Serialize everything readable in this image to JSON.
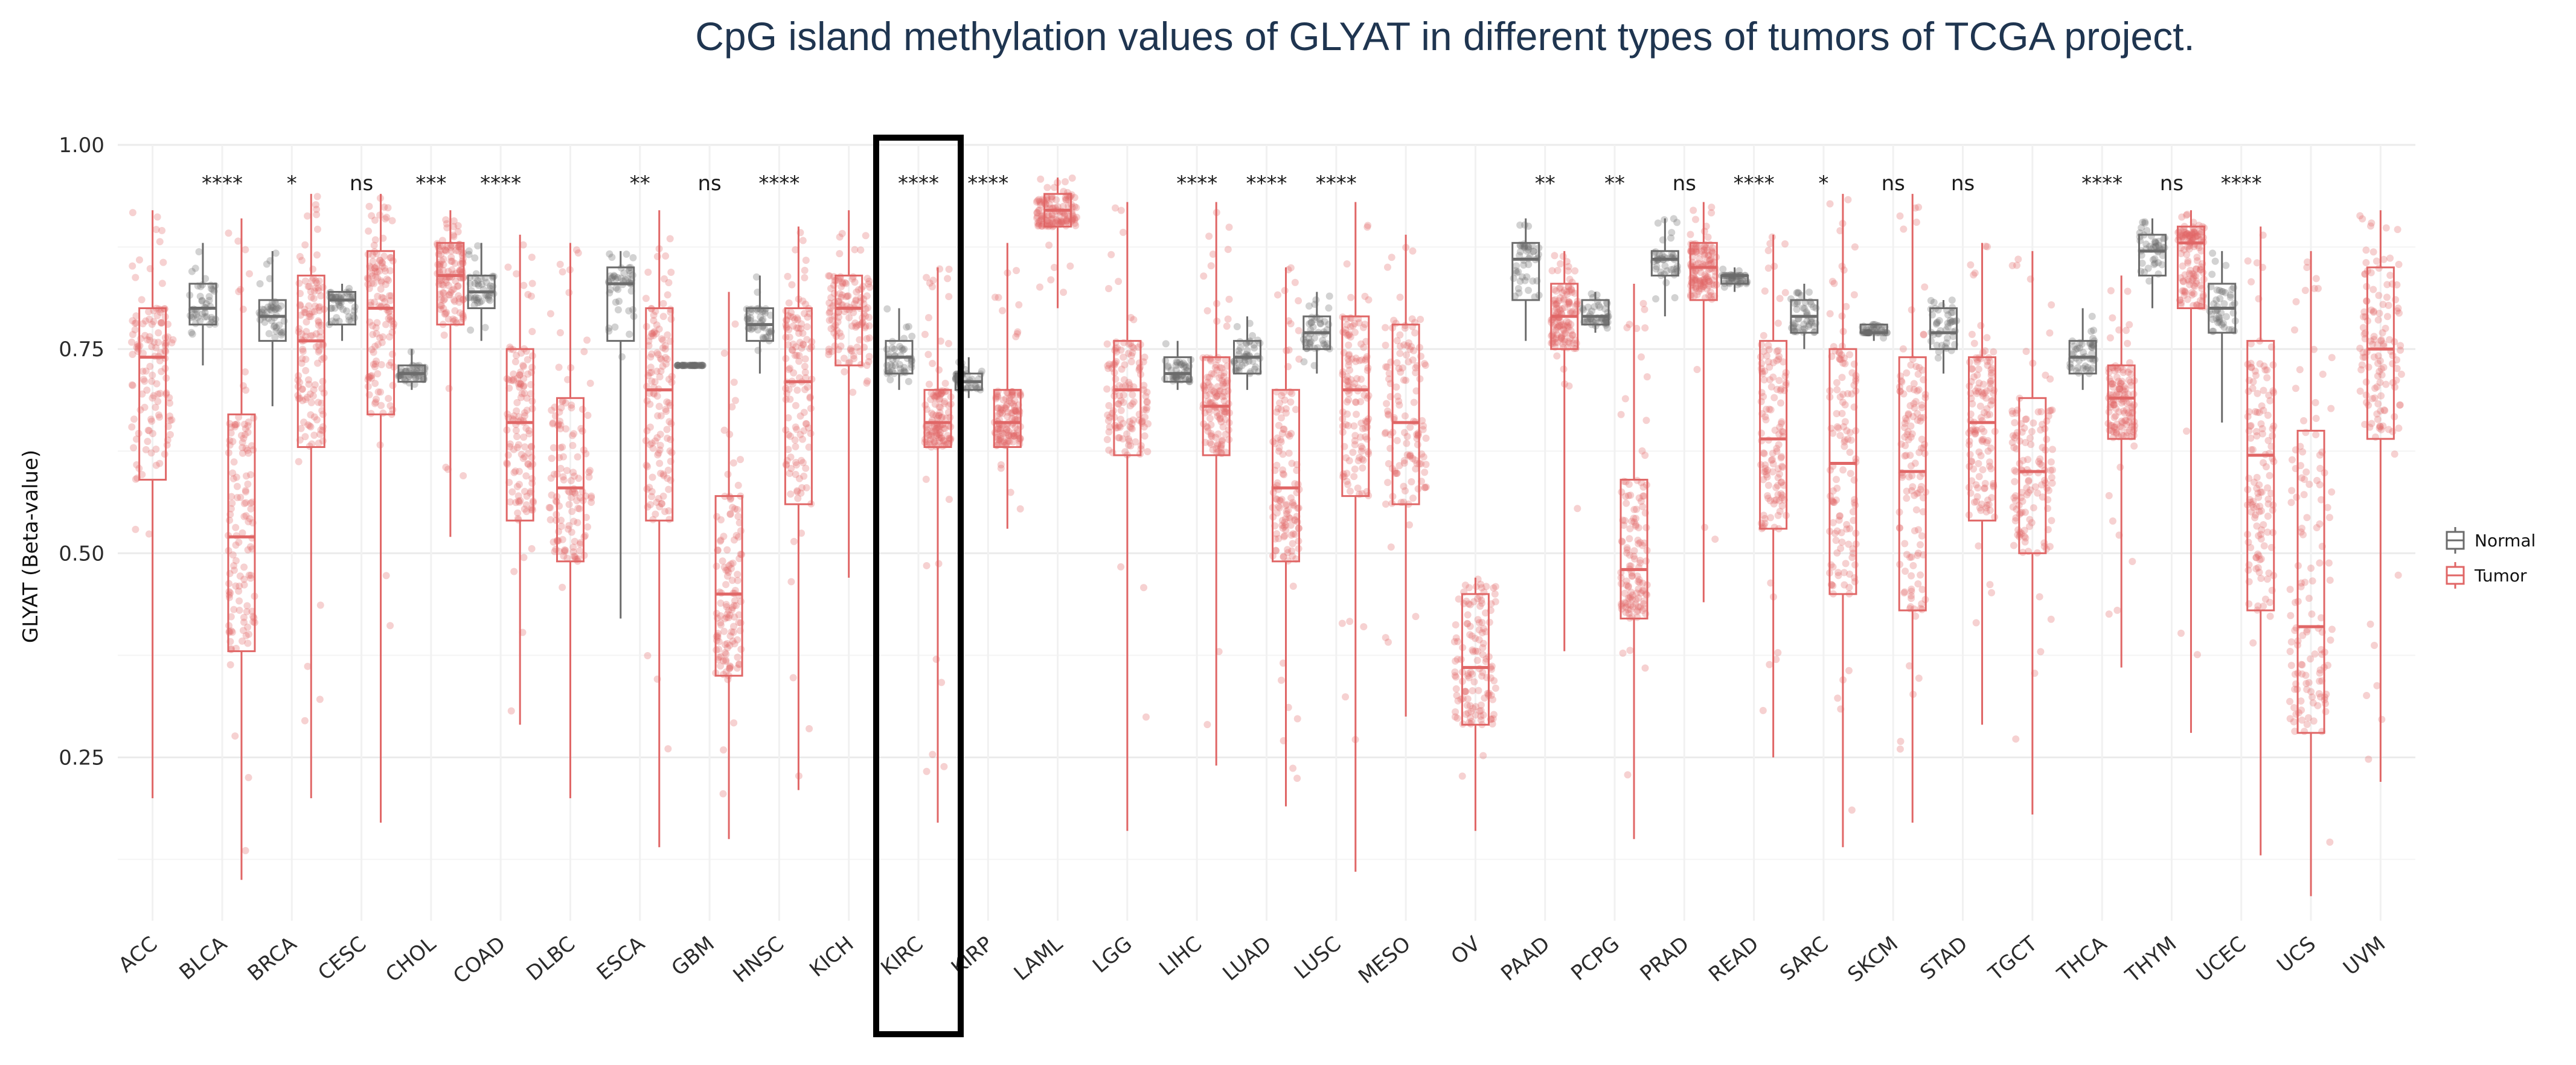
{
  "title": "CpG island methylation values of GLYAT in different types of tumors of TCGA project.",
  "chart_data": {
    "type": "box",
    "title": "CpG island methylation values of GLYAT in different types of tumors of TCGA project.",
    "xlabel": "",
    "ylabel": "GLYAT (Beta-value)",
    "ylim": [
      0.05,
      1.0
    ],
    "yticks": [
      0.25,
      0.5,
      0.75,
      1.0
    ],
    "ytick_labels": [
      "0.25",
      "0.50",
      "0.75",
      "1.00"
    ],
    "grid": true,
    "legend_position": "right",
    "colors": {
      "Normal": "#6b6b6b",
      "Tumor": "#e06666"
    },
    "highlighted_category": "KIRC",
    "legend": [
      {
        "name": "Normal",
        "color": "#6b6b6b"
      },
      {
        "name": "Tumor",
        "color": "#e06666"
      }
    ],
    "categories": [
      "ACC",
      "BLCA",
      "BRCA",
      "CESC",
      "CHOL",
      "COAD",
      "DLBC",
      "ESCA",
      "GBM",
      "HNSC",
      "KICH",
      "KIRC",
      "KIRP",
      "LAML",
      "LGG",
      "LIHC",
      "LUAD",
      "LUSC",
      "MESO",
      "OV",
      "PAAD",
      "PCPG",
      "PRAD",
      "READ",
      "SARC",
      "SKCM",
      "STAD",
      "TGCT",
      "THCA",
      "THYM",
      "UCEC",
      "UCS",
      "UVM"
    ],
    "groups": [
      {
        "category": "ACC",
        "significance": "",
        "tumor": {
          "min": 0.2,
          "q1": 0.59,
          "median": 0.74,
          "q3": 0.8,
          "max": 0.92
        }
      },
      {
        "category": "BLCA",
        "significance": "****",
        "normal": {
          "min": 0.73,
          "q1": 0.78,
          "median": 0.8,
          "q3": 0.83,
          "max": 0.88
        },
        "tumor": {
          "min": 0.1,
          "q1": 0.38,
          "median": 0.52,
          "q3": 0.67,
          "max": 0.91
        }
      },
      {
        "category": "BRCA",
        "significance": "*",
        "normal": {
          "min": 0.68,
          "q1": 0.76,
          "median": 0.79,
          "q3": 0.81,
          "max": 0.87
        },
        "tumor": {
          "min": 0.2,
          "q1": 0.63,
          "median": 0.76,
          "q3": 0.84,
          "max": 0.94
        }
      },
      {
        "category": "CESC",
        "significance": "ns",
        "normal": {
          "min": 0.76,
          "q1": 0.78,
          "median": 0.81,
          "q3": 0.82,
          "max": 0.83
        },
        "tumor": {
          "min": 0.17,
          "q1": 0.67,
          "median": 0.8,
          "q3": 0.87,
          "max": 0.94
        }
      },
      {
        "category": "CHOL",
        "significance": "***",
        "normal": {
          "min": 0.7,
          "q1": 0.71,
          "median": 0.72,
          "q3": 0.73,
          "max": 0.75
        },
        "tumor": {
          "min": 0.52,
          "q1": 0.78,
          "median": 0.84,
          "q3": 0.88,
          "max": 0.92
        }
      },
      {
        "category": "COAD",
        "significance": "****",
        "normal": {
          "min": 0.76,
          "q1": 0.8,
          "median": 0.82,
          "q3": 0.84,
          "max": 0.88
        },
        "tumor": {
          "min": 0.29,
          "q1": 0.54,
          "median": 0.66,
          "q3": 0.75,
          "max": 0.89
        }
      },
      {
        "category": "DLBC",
        "significance": "",
        "tumor": {
          "min": 0.2,
          "q1": 0.49,
          "median": 0.58,
          "q3": 0.69,
          "max": 0.88
        }
      },
      {
        "category": "ESCA",
        "significance": "**",
        "normal": {
          "min": 0.42,
          "q1": 0.76,
          "median": 0.83,
          "q3": 0.85,
          "max": 0.87
        },
        "tumor": {
          "min": 0.14,
          "q1": 0.54,
          "median": 0.7,
          "q3": 0.8,
          "max": 0.92
        }
      },
      {
        "category": "GBM",
        "significance": "ns",
        "normal": {
          "min": 0.73,
          "q1": 0.73,
          "median": 0.73,
          "q3": 0.73,
          "max": 0.73
        },
        "tumor": {
          "min": 0.15,
          "q1": 0.35,
          "median": 0.45,
          "q3": 0.57,
          "max": 0.82
        }
      },
      {
        "category": "HNSC",
        "significance": "****",
        "normal": {
          "min": 0.72,
          "q1": 0.76,
          "median": 0.78,
          "q3": 0.8,
          "max": 0.84
        },
        "tumor": {
          "min": 0.21,
          "q1": 0.56,
          "median": 0.71,
          "q3": 0.8,
          "max": 0.9
        }
      },
      {
        "category": "KICH",
        "significance": "",
        "tumor": {
          "min": 0.47,
          "q1": 0.73,
          "median": 0.8,
          "q3": 0.84,
          "max": 0.92
        }
      },
      {
        "category": "KIRC",
        "significance": "****",
        "normal": {
          "min": 0.7,
          "q1": 0.72,
          "median": 0.74,
          "q3": 0.76,
          "max": 0.8
        },
        "tumor": {
          "min": 0.17,
          "q1": 0.63,
          "median": 0.66,
          "q3": 0.7,
          "max": 0.85
        }
      },
      {
        "category": "KIRP",
        "significance": "****",
        "normal": {
          "min": 0.69,
          "q1": 0.7,
          "median": 0.71,
          "q3": 0.72,
          "max": 0.74
        },
        "tumor": {
          "min": 0.53,
          "q1": 0.63,
          "median": 0.66,
          "q3": 0.7,
          "max": 0.88
        }
      },
      {
        "category": "LAML",
        "significance": "",
        "tumor": {
          "min": 0.8,
          "q1": 0.9,
          "median": 0.92,
          "q3": 0.94,
          "max": 0.96
        }
      },
      {
        "category": "LGG",
        "significance": "",
        "tumor": {
          "min": 0.16,
          "q1": 0.62,
          "median": 0.7,
          "q3": 0.76,
          "max": 0.93
        }
      },
      {
        "category": "LIHC",
        "significance": "****",
        "normal": {
          "min": 0.7,
          "q1": 0.71,
          "median": 0.72,
          "q3": 0.74,
          "max": 0.76
        },
        "tumor": {
          "min": 0.24,
          "q1": 0.62,
          "median": 0.68,
          "q3": 0.74,
          "max": 0.93
        }
      },
      {
        "category": "LUAD",
        "significance": "****",
        "normal": {
          "min": 0.7,
          "q1": 0.72,
          "median": 0.74,
          "q3": 0.76,
          "max": 0.79
        },
        "tumor": {
          "min": 0.19,
          "q1": 0.49,
          "median": 0.58,
          "q3": 0.7,
          "max": 0.85
        }
      },
      {
        "category": "LUSC",
        "significance": "****",
        "normal": {
          "min": 0.72,
          "q1": 0.75,
          "median": 0.77,
          "q3": 0.79,
          "max": 0.82
        },
        "tumor": {
          "min": 0.11,
          "q1": 0.57,
          "median": 0.7,
          "q3": 0.79,
          "max": 0.93
        }
      },
      {
        "category": "MESO",
        "significance": "",
        "tumor": {
          "min": 0.3,
          "q1": 0.56,
          "median": 0.66,
          "q3": 0.78,
          "max": 0.89
        }
      },
      {
        "category": "OV",
        "significance": "",
        "tumor": {
          "min": 0.16,
          "q1": 0.29,
          "median": 0.36,
          "q3": 0.45,
          "max": 0.47
        }
      },
      {
        "category": "PAAD",
        "significance": "**",
        "normal": {
          "min": 0.76,
          "q1": 0.81,
          "median": 0.86,
          "q3": 0.88,
          "max": 0.91
        },
        "tumor": {
          "min": 0.38,
          "q1": 0.75,
          "median": 0.79,
          "q3": 0.83,
          "max": 0.87
        }
      },
      {
        "category": "PCPG",
        "significance": "**",
        "normal": {
          "min": 0.77,
          "q1": 0.78,
          "median": 0.79,
          "q3": 0.81,
          "max": 0.82
        },
        "tumor": {
          "min": 0.15,
          "q1": 0.42,
          "median": 0.48,
          "q3": 0.59,
          "max": 0.83
        }
      },
      {
        "category": "PRAD",
        "significance": "ns",
        "normal": {
          "min": 0.79,
          "q1": 0.84,
          "median": 0.86,
          "q3": 0.87,
          "max": 0.91
        },
        "tumor": {
          "min": 0.44,
          "q1": 0.81,
          "median": 0.85,
          "q3": 0.88,
          "max": 0.93
        }
      },
      {
        "category": "READ",
        "significance": "****",
        "normal": {
          "min": 0.82,
          "q1": 0.83,
          "median": 0.84,
          "q3": 0.84,
          "max": 0.85
        },
        "tumor": {
          "min": 0.25,
          "q1": 0.53,
          "median": 0.64,
          "q3": 0.76,
          "max": 0.89
        }
      },
      {
        "category": "SARC",
        "significance": "*",
        "normal": {
          "min": 0.75,
          "q1": 0.77,
          "median": 0.79,
          "q3": 0.81,
          "max": 0.83
        },
        "tumor": {
          "min": 0.14,
          "q1": 0.45,
          "median": 0.61,
          "q3": 0.75,
          "max": 0.94
        }
      },
      {
        "category": "SKCM",
        "significance": "ns",
        "normal": {
          "min": 0.76,
          "q1": 0.77,
          "median": 0.77,
          "q3": 0.78,
          "max": 0.78
        },
        "tumor": {
          "min": 0.17,
          "q1": 0.43,
          "median": 0.6,
          "q3": 0.74,
          "max": 0.94
        }
      },
      {
        "category": "STAD",
        "significance": "ns",
        "normal": {
          "min": 0.72,
          "q1": 0.75,
          "median": 0.77,
          "q3": 0.8,
          "max": 0.81
        },
        "tumor": {
          "min": 0.29,
          "q1": 0.54,
          "median": 0.66,
          "q3": 0.74,
          "max": 0.88
        }
      },
      {
        "category": "TGCT",
        "significance": "",
        "tumor": {
          "min": 0.18,
          "q1": 0.5,
          "median": 0.6,
          "q3": 0.69,
          "max": 0.87
        }
      },
      {
        "category": "THCA",
        "significance": "****",
        "normal": {
          "min": 0.7,
          "q1": 0.72,
          "median": 0.74,
          "q3": 0.76,
          "max": 0.8
        },
        "tumor": {
          "min": 0.36,
          "q1": 0.64,
          "median": 0.69,
          "q3": 0.73,
          "max": 0.84
        }
      },
      {
        "category": "THYM",
        "significance": "ns",
        "normal": {
          "min": 0.8,
          "q1": 0.84,
          "median": 0.87,
          "q3": 0.89,
          "max": 0.91
        },
        "tumor": {
          "min": 0.28,
          "q1": 0.8,
          "median": 0.88,
          "q3": 0.9,
          "max": 0.92
        }
      },
      {
        "category": "UCEC",
        "significance": "****",
        "normal": {
          "min": 0.66,
          "q1": 0.77,
          "median": 0.8,
          "q3": 0.83,
          "max": 0.87
        },
        "tumor": {
          "min": 0.13,
          "q1": 0.43,
          "median": 0.62,
          "q3": 0.76,
          "max": 0.9
        }
      },
      {
        "category": "UCS",
        "significance": "",
        "tumor": {
          "min": 0.08,
          "q1": 0.28,
          "median": 0.41,
          "q3": 0.65,
          "max": 0.87
        }
      },
      {
        "category": "UVM",
        "significance": "",
        "tumor": {
          "min": 0.22,
          "q1": 0.64,
          "median": 0.75,
          "q3": 0.85,
          "max": 0.92
        }
      }
    ]
  }
}
